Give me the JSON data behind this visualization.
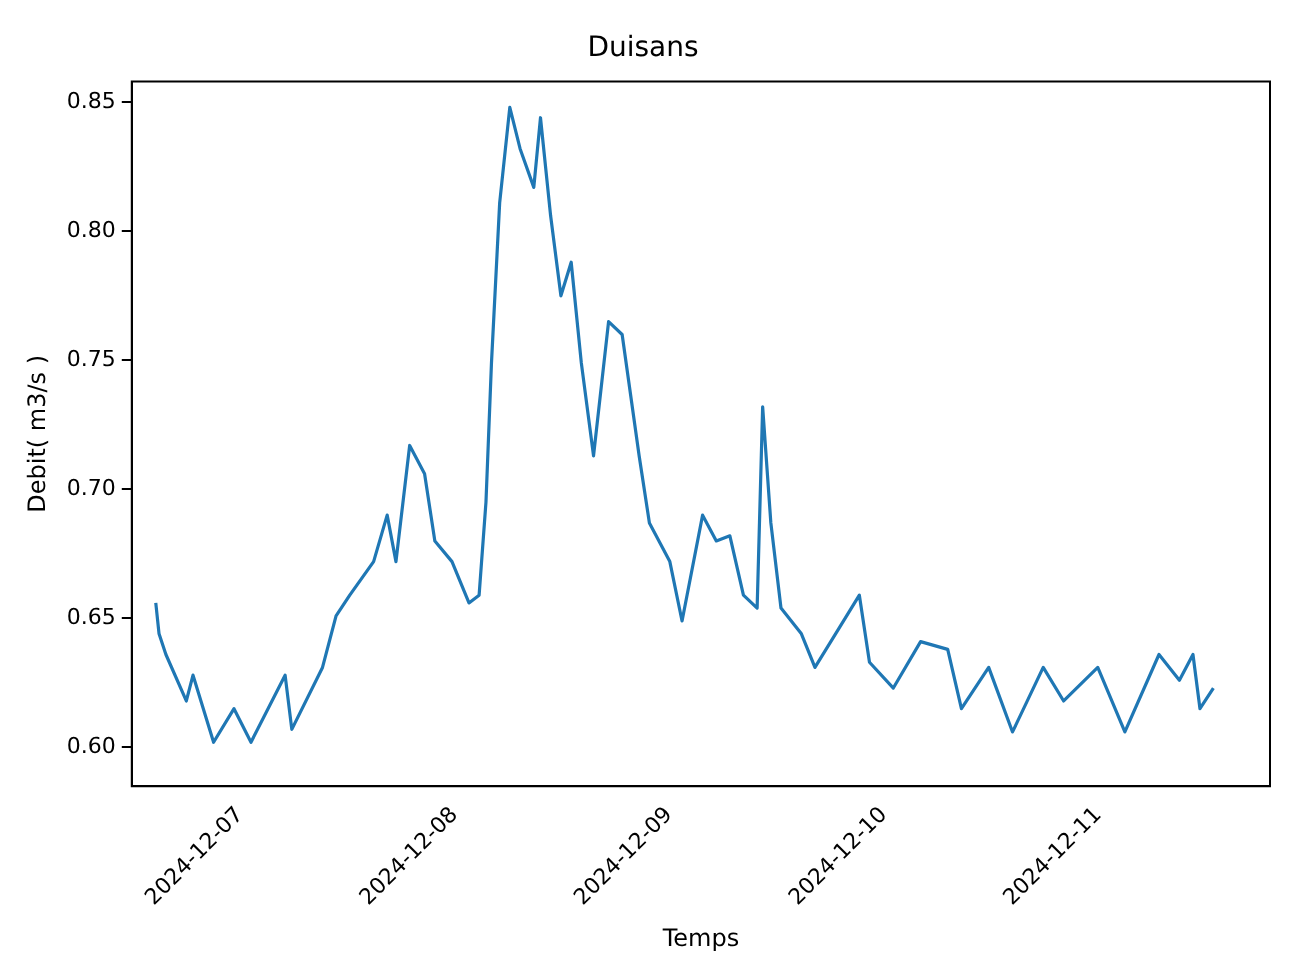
{
  "chart_data": {
    "type": "line",
    "title": "Duisans",
    "xlabel": "Temps",
    "ylabel": "Debit( m3/s )",
    "x": [
      "2024-12-06T14:34",
      "2024-12-06T14:56",
      "2024-12-06T15:42",
      "2024-12-06T17:59",
      "2024-12-06T18:44",
      "2024-12-06T21:02",
      "2024-12-06T23:19",
      "2024-12-07T01:13",
      "2024-12-07T05:02",
      "2024-12-07T05:47",
      "2024-12-07T09:13",
      "2024-12-07T10:44",
      "2024-12-07T12:16",
      "2024-12-07T14:56",
      "2024-12-07T16:27",
      "2024-12-07T17:26",
      "2024-12-07T18:58",
      "2024-12-07T20:38",
      "2024-12-07T21:47",
      "2024-12-07T23:42",
      "2024-12-08T01:36",
      "2024-12-08T02:44",
      "2024-12-08T03:30",
      "2024-12-08T04:07",
      "2024-12-08T05:02",
      "2024-12-08T06:10",
      "2024-12-08T07:19",
      "2024-12-08T08:51",
      "2024-12-08T09:36",
      "2024-12-08T10:44",
      "2024-12-08T11:53",
      "2024-12-08T13:02",
      "2024-12-08T14:10",
      "2024-12-08T15:32",
      "2024-12-08T17:13",
      "2024-12-08T18:44",
      "2024-12-08T20:38",
      "2024-12-08T21:47",
      "2024-12-09T00:04",
      "2024-12-09T01:26",
      "2024-12-09T03:44",
      "2024-12-09T05:16",
      "2024-12-09T06:47",
      "2024-12-09T08:18",
      "2024-12-09T09:50",
      "2024-12-09T10:27",
      "2024-12-09T11:22",
      "2024-12-09T12:30",
      "2024-12-09T14:47",
      "2024-12-09T16:18",
      "2024-12-09T18:58",
      "2024-12-09T21:16",
      "2024-12-09T22:24",
      "2024-12-10T01:04",
      "2024-12-10T04:07",
      "2024-12-10T07:09",
      "2024-12-10T08:41",
      "2024-12-10T11:44",
      "2024-12-10T14:24",
      "2024-12-10T17:50",
      "2024-12-10T20:07",
      "2024-12-10T23:56",
      "2024-12-11T02:58",
      "2024-12-11T06:47",
      "2024-12-11T09:04",
      "2024-12-11T10:35",
      "2024-12-11T11:22",
      "2024-12-11T12:52"
    ],
    "series": [
      {
        "color": "#1f77b4",
        "values": [
          0.656,
          0.644,
          0.636,
          0.618,
          0.628,
          0.602,
          0.615,
          0.602,
          0.628,
          0.607,
          0.631,
          0.651,
          0.659,
          0.672,
          0.69,
          0.672,
          0.717,
          0.706,
          0.68,
          0.672,
          0.656,
          0.659,
          0.695,
          0.749,
          0.811,
          0.848,
          0.832,
          0.817,
          0.844,
          0.806,
          0.775,
          0.788,
          0.749,
          0.713,
          0.765,
          0.76,
          0.713,
          0.687,
          0.672,
          0.649,
          0.69,
          0.68,
          0.682,
          0.659,
          0.654,
          0.732,
          0.687,
          0.654,
          0.644,
          0.631,
          0.646,
          0.659,
          0.633,
          0.623,
          0.641,
          0.638,
          0.615,
          0.631,
          0.606,
          0.631,
          0.618,
          0.631,
          0.606,
          0.636,
          0.626,
          0.636,
          0.615,
          0.623
        ]
      }
    ],
    "xlim": [
      "2024-12-06T11:53",
      "2024-12-11T19:12"
    ],
    "xticks": [
      "2024-12-07",
      "2024-12-08",
      "2024-12-09",
      "2024-12-10",
      "2024-12-11"
    ],
    "ylim": [
      0.585,
      0.858
    ],
    "yticks": [
      {
        "value": 0.6,
        "label": "0.60"
      },
      {
        "value": 0.65,
        "label": "0.65"
      },
      {
        "value": 0.7,
        "label": "0.70"
      },
      {
        "value": 0.75,
        "label": "0.75"
      },
      {
        "value": 0.8,
        "label": "0.80"
      },
      {
        "value": 0.85,
        "label": "0.85"
      }
    ],
    "grid": false,
    "legend": false
  }
}
